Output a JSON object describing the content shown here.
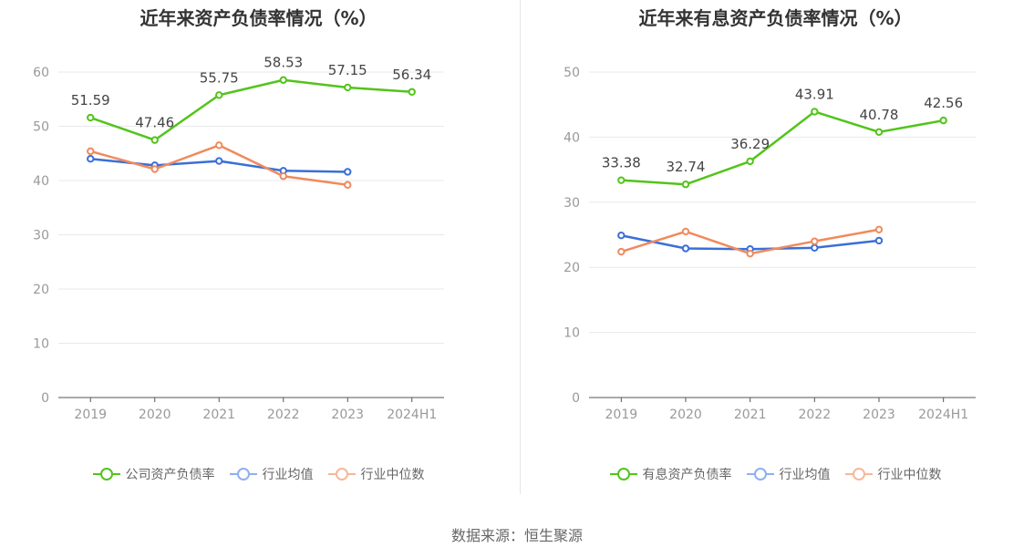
{
  "colors": {
    "primary": "#52c41a",
    "avg": "#3a6fd8",
    "median": "#f08a5d",
    "grid": "#e8e8ee",
    "axis": "#555555",
    "tick": "#999999"
  },
  "source": "数据来源：恒生聚源",
  "chart_data": [
    {
      "type": "line",
      "title": "近年来资产负债率情况（%）",
      "categories": [
        "2019",
        "2020",
        "2021",
        "2022",
        "2023",
        "2024H1"
      ],
      "ylim": [
        0,
        60
      ],
      "yticks": [
        0,
        10,
        20,
        30,
        40,
        50,
        60
      ],
      "grid": true,
      "legend_position": "bottom",
      "series": [
        {
          "name": "公司资产负债率",
          "values": [
            51.59,
            47.46,
            55.75,
            58.53,
            57.15,
            56.34
          ],
          "labels": [
            "51.59",
            "47.46",
            "55.75",
            "58.53",
            "57.15",
            "56.34"
          ],
          "color": "#52c41a"
        },
        {
          "name": "行业均值",
          "values": [
            44.0,
            42.8,
            43.6,
            41.8,
            41.6,
            null
          ],
          "color": "#3a6fd8"
        },
        {
          "name": "行业中位数",
          "values": [
            45.4,
            42.1,
            46.5,
            40.8,
            39.2,
            null
          ],
          "color": "#f08a5d"
        }
      ]
    },
    {
      "type": "line",
      "title": "近年来有息资产负债率情况（%）",
      "categories": [
        "2019",
        "2020",
        "2021",
        "2022",
        "2023",
        "2024H1"
      ],
      "ylim": [
        0,
        50
      ],
      "yticks": [
        0,
        10,
        20,
        30,
        40,
        50
      ],
      "grid": true,
      "legend_position": "bottom",
      "series": [
        {
          "name": "有息资产负债率",
          "values": [
            33.38,
            32.74,
            36.29,
            43.91,
            40.78,
            42.56
          ],
          "labels": [
            "33.38",
            "32.74",
            "36.29",
            "43.91",
            "40.78",
            "42.56"
          ],
          "color": "#52c41a"
        },
        {
          "name": "行业均值",
          "values": [
            24.9,
            22.9,
            22.8,
            23.0,
            24.1,
            null
          ],
          "color": "#3a6fd8"
        },
        {
          "name": "行业中位数",
          "values": [
            22.4,
            25.5,
            22.1,
            24.0,
            25.8,
            null
          ],
          "color": "#f08a5d"
        }
      ]
    }
  ]
}
